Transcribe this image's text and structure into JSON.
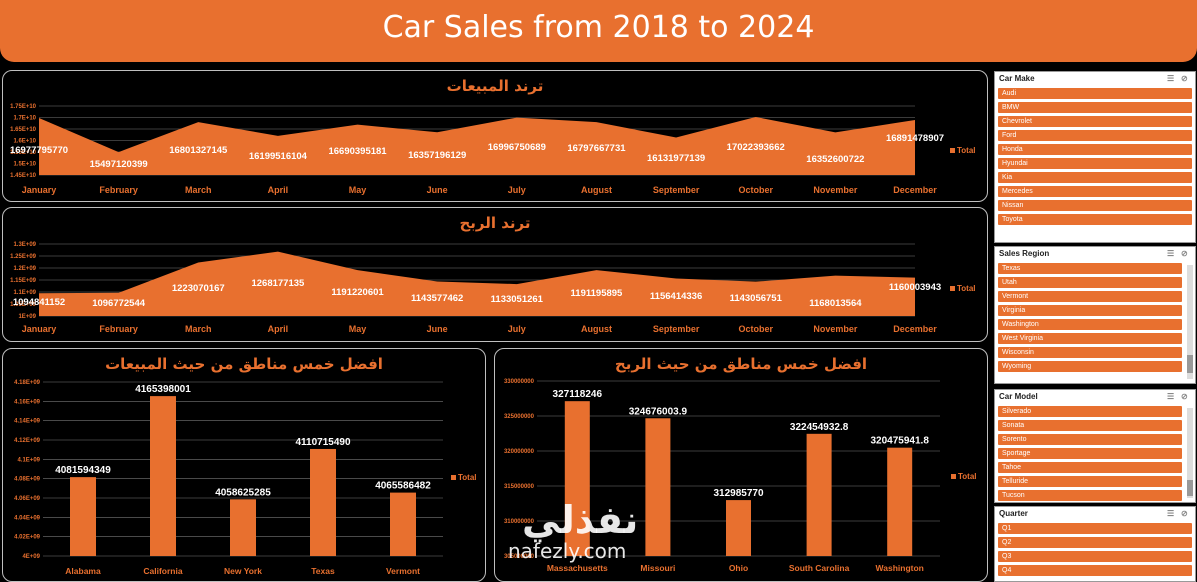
{
  "header": {
    "title": "Car Sales from 2018 to 2024"
  },
  "colors": {
    "accent": "#e8702f",
    "background": "#000000",
    "text": "#ffffff"
  },
  "chart_data": [
    {
      "id": "sales-trend",
      "type": "area",
      "title": "ترند المبيعات",
      "categories": [
        "January",
        "February",
        "March",
        "April",
        "May",
        "June",
        "July",
        "August",
        "September",
        "October",
        "November",
        "December"
      ],
      "series": [
        {
          "name": "Total",
          "values": [
            16977795770,
            15497120399,
            16801327145,
            16199516104,
            16690395181,
            16357196129,
            16996750689,
            16797667731,
            16131977139,
            17022393662,
            16352600722,
            16891478907
          ]
        }
      ],
      "ylim": [
        14500000000,
        17500000000
      ],
      "yticks": [
        "1.75E+10",
        "1.7E+10",
        "1.65E+10",
        "1.6E+10",
        "1.55E+10",
        "1.5E+10",
        "1.45E+10"
      ],
      "ytick_values": [
        17500000000,
        17000000000,
        16500000000,
        16000000000,
        15500000000,
        15000000000,
        14500000000
      ],
      "labels": [
        "16977795770",
        "15497120399",
        "16801327145",
        "16199516104",
        "16690395181",
        "16357196129",
        "16996750689",
        "16797667731",
        "16131977139",
        "17022393662",
        "16352600722",
        "16891478907"
      ],
      "legend": "right"
    },
    {
      "id": "profit-trend",
      "type": "area",
      "title": "ترند الربح",
      "categories": [
        "January",
        "February",
        "March",
        "April",
        "May",
        "June",
        "July",
        "August",
        "September",
        "October",
        "November",
        "December"
      ],
      "series": [
        {
          "name": "Total",
          "values": [
            1094841152,
            1096772544,
            1223070167,
            1268177135,
            1191220601,
            1143577462,
            1133051261,
            1191195895,
            1156414336,
            1143056751,
            1168013564,
            1160003943
          ]
        }
      ],
      "ylim": [
        1000000000,
        1300000000
      ],
      "yticks": [
        "1.3E+09",
        "1.25E+09",
        "1.2E+09",
        "1.15E+09",
        "1.1E+09",
        "1.05E+09",
        "1E+09"
      ],
      "ytick_values": [
        1300000000,
        1250000000,
        1200000000,
        1150000000,
        1100000000,
        1050000000,
        1000000000
      ],
      "labels": [
        "1094841152",
        "1096772544",
        "1223070167",
        "1268177135",
        "1191220601",
        "1143577462",
        "1133051261",
        "1191195895",
        "1156414336",
        "1143056751",
        "1168013564",
        "1160003943"
      ],
      "legend": "right"
    },
    {
      "id": "top-sales-regions",
      "type": "bar",
      "title": "افضل خمس مناطق من حيث المبيعات",
      "categories": [
        "Alabama",
        "California",
        "New York",
        "Texas",
        "Vermont"
      ],
      "series": [
        {
          "name": "Total",
          "values": [
            4081594349,
            4165398001,
            4058625285,
            4110715490,
            4065586482
          ]
        }
      ],
      "ylim": [
        4000000000,
        4180000000
      ],
      "yticks": [
        "4.18E+09",
        "4.16E+09",
        "4.14E+09",
        "4.12E+09",
        "4.1E+09",
        "4.08E+09",
        "4.06E+09",
        "4.04E+09",
        "4.02E+09",
        "4E+09"
      ],
      "ytick_values": [
        4180000000,
        4160000000,
        4140000000,
        4120000000,
        4100000000,
        4080000000,
        4060000000,
        4040000000,
        4020000000,
        4000000000
      ],
      "labels": [
        "4081594349",
        "4165398001",
        "4058625285",
        "4110715490",
        "4065586482"
      ],
      "legend": "right"
    },
    {
      "id": "top-profit-regions",
      "type": "bar",
      "title": "افضل خمس مناطق من حيث الربح",
      "categories": [
        "Massachusetts",
        "Missouri",
        "Ohio",
        "South Carolina",
        "Washington"
      ],
      "series": [
        {
          "name": "Total",
          "values": [
            327118246,
            324676003.9,
            312985770,
            322454932.8,
            320475941.8
          ]
        }
      ],
      "ylim": [
        305000000,
        330000000
      ],
      "yticks": [
        "330000000",
        "325000000",
        "320000000",
        "315000000",
        "310000000",
        "305000000"
      ],
      "ytick_values": [
        330000000,
        325000000,
        320000000,
        315000000,
        310000000,
        305000000
      ],
      "labels": [
        "327118246",
        "324676003.9",
        "312985770",
        "322454932.8",
        "320475941.8"
      ],
      "legend": "right"
    }
  ],
  "slicers": [
    {
      "title": "Car Make",
      "items": [
        "Audi",
        "BMW",
        "Chevrolet",
        "Ford",
        "Honda",
        "Hyundai",
        "Kia",
        "Mercedes",
        "Nissan",
        "Toyota"
      ]
    },
    {
      "title": "Sales Region",
      "items": [
        "Texas",
        "Utah",
        "Vermont",
        "Virginia",
        "Washington",
        "West Virginia",
        "Wisconsin",
        "Wyoming"
      ]
    },
    {
      "title": "Car Model",
      "items": [
        "Silverado",
        "Sonata",
        "Sorento",
        "Sportage",
        "Tahoe",
        "Telluride",
        "Tucson"
      ]
    },
    {
      "title": "Quarter",
      "items": [
        "Q1",
        "Q2",
        "Q3",
        "Q4"
      ]
    }
  ],
  "watermark": {
    "arabic": "نفذلي",
    "latin": "nafezly.com"
  }
}
